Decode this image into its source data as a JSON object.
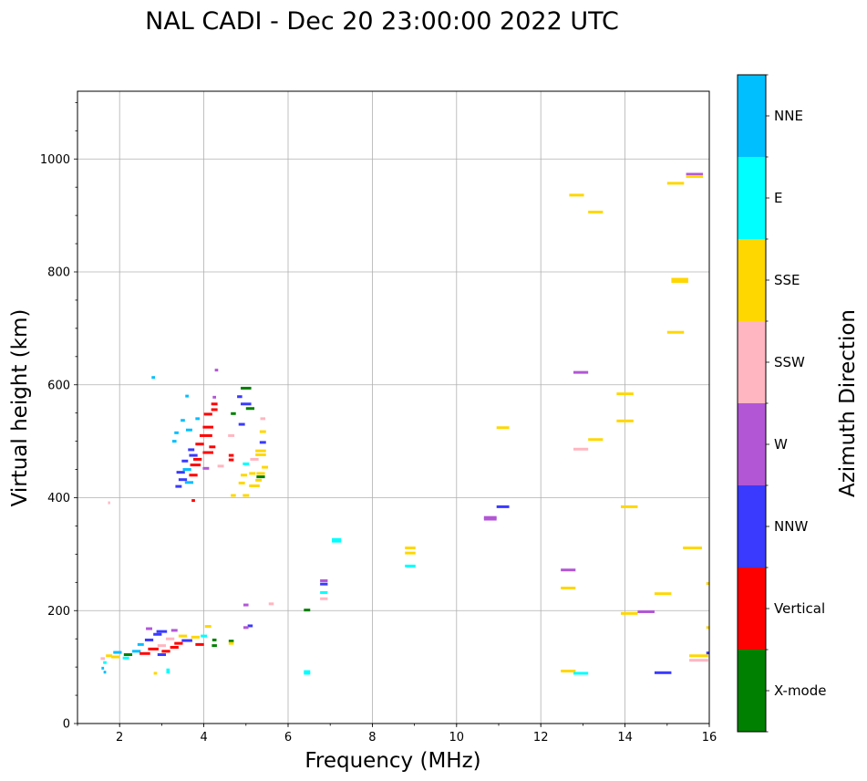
{
  "chart_data": {
    "type": "scatter",
    "title": "NAL CADI - Dec 20 23:00:00 2022 UTC",
    "xlabel": "Frequency (MHz)",
    "ylabel": "Virtual height (km)",
    "xlim": [
      1,
      16
    ],
    "ylim": [
      0,
      1120
    ],
    "xticks": [
      2,
      4,
      6,
      8,
      10,
      12,
      14,
      16
    ],
    "yticks": [
      0,
      200,
      400,
      600,
      800,
      1000
    ],
    "grid": true,
    "colorbar": {
      "label": "Azimuth Direction",
      "categories": [
        {
          "name": "X-mode",
          "color": "#008000"
        },
        {
          "name": "Vertical",
          "color": "#ff0000"
        },
        {
          "name": "NNW",
          "color": "#3a3aff"
        },
        {
          "name": "W",
          "color": "#b256d6"
        },
        {
          "name": "SSW",
          "color": "#ffb6c1"
        },
        {
          "name": "SSE",
          "color": "#ffd700"
        },
        {
          "name": "E",
          "color": "#00ffff"
        },
        {
          "name": "NNE",
          "color": "#00bfff"
        }
      ]
    },
    "points": [
      {
        "f": 12.85,
        "h": 936,
        "w": 0.35,
        "az": "SSE"
      },
      {
        "f": 13.3,
        "h": 906,
        "w": 0.35,
        "az": "SSE"
      },
      {
        "f": 15.65,
        "h": 973,
        "w": 0.4,
        "az": "W"
      },
      {
        "f": 15.65,
        "h": 969,
        "w": 0.4,
        "az": "SSE"
      },
      {
        "f": 15.2,
        "h": 957,
        "w": 0.4,
        "az": "SSE"
      },
      {
        "f": 15.3,
        "h": 787,
        "w": 0.4,
        "az": "SSE"
      },
      {
        "f": 15.3,
        "h": 783,
        "w": 0.4,
        "az": "SSE"
      },
      {
        "f": 15.2,
        "h": 693,
        "w": 0.4,
        "az": "SSE"
      },
      {
        "f": 12.95,
        "h": 622,
        "w": 0.35,
        "az": "W"
      },
      {
        "f": 14.0,
        "h": 584,
        "w": 0.4,
        "az": "SSE"
      },
      {
        "f": 14.0,
        "h": 536,
        "w": 0.4,
        "az": "SSE"
      },
      {
        "f": 13.3,
        "h": 503,
        "w": 0.35,
        "az": "SSE"
      },
      {
        "f": 12.95,
        "h": 486,
        "w": 0.35,
        "az": "SSW"
      },
      {
        "f": 11.1,
        "h": 524,
        "w": 0.3,
        "az": "SSE"
      },
      {
        "f": 11.1,
        "h": 384,
        "w": 0.3,
        "az": "NNW"
      },
      {
        "f": 10.8,
        "h": 365,
        "w": 0.3,
        "az": "W"
      },
      {
        "f": 10.8,
        "h": 362,
        "w": 0.3,
        "az": "W"
      },
      {
        "f": 14.1,
        "h": 384,
        "w": 0.4,
        "az": "SSE"
      },
      {
        "f": 15.6,
        "h": 311,
        "w": 0.45,
        "az": "SSE"
      },
      {
        "f": 12.65,
        "h": 272,
        "w": 0.35,
        "az": "W"
      },
      {
        "f": 12.65,
        "h": 240,
        "w": 0.35,
        "az": "SSE"
      },
      {
        "f": 14.9,
        "h": 230,
        "w": 0.4,
        "az": "SSE"
      },
      {
        "f": 14.1,
        "h": 195,
        "w": 0.4,
        "az": "SSE"
      },
      {
        "f": 14.5,
        "h": 198,
        "w": 0.4,
        "az": "W"
      },
      {
        "f": 12.65,
        "h": 93,
        "w": 0.35,
        "az": "SSE"
      },
      {
        "f": 12.95,
        "h": 89,
        "w": 0.35,
        "az": "E"
      },
      {
        "f": 14.9,
        "h": 90,
        "w": 0.4,
        "az": "NNW"
      },
      {
        "f": 15.75,
        "h": 120,
        "w": 0.45,
        "az": "SSE"
      },
      {
        "f": 15.75,
        "h": 112,
        "w": 0.45,
        "az": "SSW"
      },
      {
        "f": 15.97,
        "h": 248,
        "w": 0.08,
        "az": "SSE"
      },
      {
        "f": 15.97,
        "h": 170,
        "w": 0.08,
        "az": "SSE"
      },
      {
        "f": 15.97,
        "h": 125,
        "w": 0.08,
        "az": "NNW"
      },
      {
        "f": 8.9,
        "h": 311,
        "w": 0.25,
        "az": "SSE"
      },
      {
        "f": 8.9,
        "h": 302,
        "w": 0.25,
        "az": "SSE"
      },
      {
        "f": 8.9,
        "h": 279,
        "w": 0.25,
        "az": "E"
      },
      {
        "f": 7.15,
        "h": 326,
        "w": 0.22,
        "az": "E"
      },
      {
        "f": 7.15,
        "h": 323,
        "w": 0.22,
        "az": "E"
      },
      {
        "f": 6.85,
        "h": 253,
        "w": 0.18,
        "az": "W"
      },
      {
        "f": 6.85,
        "h": 247,
        "w": 0.18,
        "az": "NNW"
      },
      {
        "f": 6.85,
        "h": 232,
        "w": 0.18,
        "az": "E"
      },
      {
        "f": 6.85,
        "h": 221,
        "w": 0.18,
        "az": "SSW"
      },
      {
        "f": 6.45,
        "h": 201,
        "w": 0.15,
        "az": "X-mode"
      },
      {
        "f": 6.45,
        "h": 92,
        "w": 0.15,
        "az": "E"
      },
      {
        "f": 6.45,
        "h": 89,
        "w": 0.15,
        "az": "E"
      },
      {
        "f": 5.0,
        "h": 594,
        "w": 0.25,
        "az": "X-mode"
      },
      {
        "f": 5.0,
        "h": 566,
        "w": 0.25,
        "az": "NNW"
      },
      {
        "f": 5.1,
        "h": 558,
        "w": 0.2,
        "az": "X-mode"
      },
      {
        "f": 4.85,
        "h": 579,
        "w": 0.12,
        "az": "NNW"
      },
      {
        "f": 4.7,
        "h": 549,
        "w": 0.12,
        "az": "X-mode"
      },
      {
        "f": 5.4,
        "h": 540,
        "w": 0.12,
        "az": "SSW"
      },
      {
        "f": 4.9,
        "h": 530,
        "w": 0.15,
        "az": "NNW"
      },
      {
        "f": 4.65,
        "h": 510,
        "w": 0.15,
        "az": "SSW"
      },
      {
        "f": 5.4,
        "h": 517,
        "w": 0.15,
        "az": "SSE"
      },
      {
        "f": 5.4,
        "h": 498,
        "w": 0.15,
        "az": "NNW"
      },
      {
        "f": 5.35,
        "h": 483,
        "w": 0.25,
        "az": "SSE"
      },
      {
        "f": 5.35,
        "h": 476,
        "w": 0.25,
        "az": "SSE"
      },
      {
        "f": 5.2,
        "h": 468,
        "w": 0.2,
        "az": "SSW"
      },
      {
        "f": 5.0,
        "h": 460,
        "w": 0.15,
        "az": "E"
      },
      {
        "f": 4.65,
        "h": 475,
        "w": 0.12,
        "az": "Vertical"
      },
      {
        "f": 4.65,
        "h": 467,
        "w": 0.12,
        "az": "Vertical"
      },
      {
        "f": 5.35,
        "h": 443,
        "w": 0.2,
        "az": "SSE"
      },
      {
        "f": 5.35,
        "h": 437,
        "w": 0.2,
        "az": "X-mode"
      },
      {
        "f": 5.15,
        "h": 443,
        "w": 0.15,
        "az": "SSE"
      },
      {
        "f": 4.95,
        "h": 440,
        "w": 0.15,
        "az": "SSE"
      },
      {
        "f": 5.3,
        "h": 431,
        "w": 0.15,
        "az": "SSE"
      },
      {
        "f": 4.9,
        "h": 426,
        "w": 0.15,
        "az": "SSE"
      },
      {
        "f": 5.2,
        "h": 421,
        "w": 0.25,
        "az": "SSE"
      },
      {
        "f": 5.0,
        "h": 404,
        "w": 0.15,
        "az": "SSE"
      },
      {
        "f": 4.7,
        "h": 404,
        "w": 0.12,
        "az": "SSE"
      },
      {
        "f": 5.45,
        "h": 454,
        "w": 0.15,
        "az": "SSE"
      },
      {
        "f": 4.3,
        "h": 626,
        "w": 0.08,
        "az": "W"
      },
      {
        "f": 4.25,
        "h": 578,
        "w": 0.08,
        "az": "W"
      },
      {
        "f": 4.25,
        "h": 566,
        "w": 0.15,
        "az": "Vertical"
      },
      {
        "f": 4.25,
        "h": 556,
        "w": 0.15,
        "az": "Vertical"
      },
      {
        "f": 4.1,
        "h": 548,
        "w": 0.2,
        "az": "Vertical"
      },
      {
        "f": 3.6,
        "h": 580,
        "w": 0.08,
        "az": "NNE"
      },
      {
        "f": 3.5,
        "h": 537,
        "w": 0.1,
        "az": "NNE"
      },
      {
        "f": 3.85,
        "h": 540,
        "w": 0.1,
        "az": "NNE"
      },
      {
        "f": 4.1,
        "h": 525,
        "w": 0.25,
        "az": "Vertical"
      },
      {
        "f": 3.65,
        "h": 520,
        "w": 0.15,
        "az": "NNE"
      },
      {
        "f": 3.35,
        "h": 515,
        "w": 0.1,
        "az": "NNE"
      },
      {
        "f": 4.05,
        "h": 510,
        "w": 0.3,
        "az": "Vertical"
      },
      {
        "f": 3.3,
        "h": 500,
        "w": 0.1,
        "az": "NNE"
      },
      {
        "f": 3.9,
        "h": 495,
        "w": 0.2,
        "az": "Vertical"
      },
      {
        "f": 4.2,
        "h": 490,
        "w": 0.15,
        "az": "Vertical"
      },
      {
        "f": 3.7,
        "h": 485,
        "w": 0.15,
        "az": "NNW"
      },
      {
        "f": 4.1,
        "h": 480,
        "w": 0.25,
        "az": "Vertical"
      },
      {
        "f": 3.75,
        "h": 475,
        "w": 0.2,
        "az": "NNW"
      },
      {
        "f": 3.85,
        "h": 468,
        "w": 0.2,
        "az": "Vertical"
      },
      {
        "f": 3.55,
        "h": 465,
        "w": 0.15,
        "az": "NNW"
      },
      {
        "f": 3.8,
        "h": 458,
        "w": 0.25,
        "az": "Vertical"
      },
      {
        "f": 4.05,
        "h": 452,
        "w": 0.15,
        "az": "W"
      },
      {
        "f": 3.6,
        "h": 450,
        "w": 0.2,
        "az": "NNE"
      },
      {
        "f": 3.45,
        "h": 445,
        "w": 0.2,
        "az": "NNW"
      },
      {
        "f": 3.75,
        "h": 440,
        "w": 0.2,
        "az": "Vertical"
      },
      {
        "f": 3.5,
        "h": 432,
        "w": 0.2,
        "az": "NNW"
      },
      {
        "f": 3.65,
        "h": 427,
        "w": 0.2,
        "az": "NNE"
      },
      {
        "f": 3.4,
        "h": 420,
        "w": 0.15,
        "az": "NNW"
      },
      {
        "f": 3.75,
        "h": 395,
        "w": 0.08,
        "az": "Vertical"
      },
      {
        "f": 4.4,
        "h": 456,
        "w": 0.15,
        "az": "SSW"
      },
      {
        "f": 2.8,
        "h": 613,
        "w": 0.08,
        "az": "NNE"
      },
      {
        "f": 1.75,
        "h": 391,
        "w": 0.05,
        "az": "SSW"
      },
      {
        "f": 5.0,
        "h": 210,
        "w": 0.12,
        "az": "W"
      },
      {
        "f": 5.6,
        "h": 212,
        "w": 0.12,
        "az": "SSW"
      },
      {
        "f": 5.1,
        "h": 173,
        "w": 0.12,
        "az": "NNW"
      },
      {
        "f": 5.0,
        "h": 170,
        "w": 0.12,
        "az": "W"
      },
      {
        "f": 2.7,
        "h": 168,
        "w": 0.15,
        "az": "W"
      },
      {
        "f": 3.0,
        "h": 163,
        "w": 0.25,
        "az": "NNW"
      },
      {
        "f": 3.3,
        "h": 165,
        "w": 0.15,
        "az": "W"
      },
      {
        "f": 2.9,
        "h": 158,
        "w": 0.2,
        "az": "NNW"
      },
      {
        "f": 3.5,
        "h": 155,
        "w": 0.2,
        "az": "SSE"
      },
      {
        "f": 3.8,
        "h": 153,
        "w": 0.2,
        "az": "SSE"
      },
      {
        "f": 4.0,
        "h": 155,
        "w": 0.15,
        "az": "E"
      },
      {
        "f": 4.1,
        "h": 172,
        "w": 0.15,
        "az": "SSE"
      },
      {
        "f": 3.2,
        "h": 150,
        "w": 0.2,
        "az": "SSW"
      },
      {
        "f": 2.7,
        "h": 148,
        "w": 0.2,
        "az": "NNW"
      },
      {
        "f": 3.6,
        "h": 147,
        "w": 0.25,
        "az": "NNW"
      },
      {
        "f": 4.25,
        "h": 148,
        "w": 0.1,
        "az": "X-mode"
      },
      {
        "f": 4.65,
        "h": 146,
        "w": 0.12,
        "az": "X-mode"
      },
      {
        "f": 4.65,
        "h": 142,
        "w": 0.12,
        "az": "SSE"
      },
      {
        "f": 3.4,
        "h": 142,
        "w": 0.2,
        "az": "Vertical"
      },
      {
        "f": 3.9,
        "h": 140,
        "w": 0.2,
        "az": "Vertical"
      },
      {
        "f": 4.25,
        "h": 138,
        "w": 0.12,
        "az": "X-mode"
      },
      {
        "f": 2.5,
        "h": 140,
        "w": 0.15,
        "az": "NNE"
      },
      {
        "f": 3.0,
        "h": 138,
        "w": 0.2,
        "az": "SSW"
      },
      {
        "f": 3.3,
        "h": 135,
        "w": 0.2,
        "az": "Vertical"
      },
      {
        "f": 2.8,
        "h": 132,
        "w": 0.25,
        "az": "Vertical"
      },
      {
        "f": 3.1,
        "h": 128,
        "w": 0.2,
        "az": "Vertical"
      },
      {
        "f": 2.4,
        "h": 128,
        "w": 0.2,
        "az": "NNE"
      },
      {
        "f": 2.6,
        "h": 124,
        "w": 0.25,
        "az": "Vertical"
      },
      {
        "f": 3.0,
        "h": 122,
        "w": 0.2,
        "az": "NNW"
      },
      {
        "f": 2.2,
        "h": 122,
        "w": 0.2,
        "az": "X-mode"
      },
      {
        "f": 1.95,
        "h": 126,
        "w": 0.2,
        "az": "NNE"
      },
      {
        "f": 1.9,
        "h": 118,
        "w": 0.2,
        "az": "SSE"
      },
      {
        "f": 2.15,
        "h": 116,
        "w": 0.15,
        "az": "E"
      },
      {
        "f": 1.75,
        "h": 120,
        "w": 0.15,
        "az": "SSE"
      },
      {
        "f": 1.6,
        "h": 115,
        "w": 0.1,
        "az": "SSW"
      },
      {
        "f": 1.65,
        "h": 108,
        "w": 0.08,
        "az": "E"
      },
      {
        "f": 1.6,
        "h": 98,
        "w": 0.06,
        "az": "NNE"
      },
      {
        "f": 1.65,
        "h": 91,
        "w": 0.06,
        "az": "NNE"
      },
      {
        "f": 3.15,
        "h": 95,
        "w": 0.08,
        "az": "E"
      },
      {
        "f": 3.15,
        "h": 91,
        "w": 0.08,
        "az": "E"
      },
      {
        "f": 2.85,
        "h": 89,
        "w": 0.08,
        "az": "SSE"
      }
    ]
  }
}
